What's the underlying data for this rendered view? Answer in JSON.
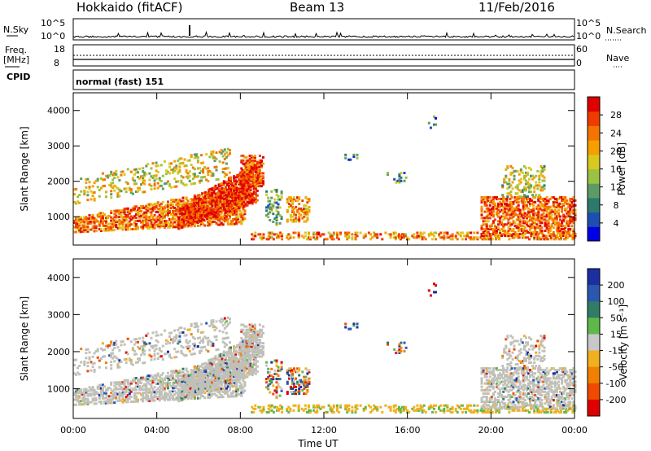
{
  "header": {
    "station": "Hokkaido (fitACF)",
    "beam": "Beam 13",
    "date": "11/Feb/2016"
  },
  "strip_panels": {
    "nsky": {
      "label": "N.Sky",
      "ticks": [
        "10^5",
        "10^0"
      ]
    },
    "nsearch": {
      "label": "N.Search",
      "ticks": [
        "10^5",
        "10^0"
      ]
    },
    "freq": {
      "label_top": "Freq.",
      "label_unit": "[MHz]",
      "ticks": [
        "18",
        "8"
      ]
    },
    "nave": {
      "label": "Nave",
      "ticks": [
        "60",
        "0"
      ]
    },
    "cpid": {
      "label": "CPID",
      "text": "normal (fast) 151"
    }
  },
  "chart_data": [
    {
      "type": "heatmap",
      "name": "power",
      "ylabel": "Slant Range [km]",
      "xlabel": "",
      "x_ticks": [
        "00:00",
        "04:00",
        "08:00",
        "12:00",
        "16:00",
        "20:00",
        "00:00"
      ],
      "xlim_hours": [
        0,
        24
      ],
      "ylim_km": [
        200,
        4500
      ],
      "y_ticks": [
        1000,
        2000,
        3000,
        4000
      ],
      "colorbar": {
        "label": "Power [dB]",
        "ticks": [
          4,
          8,
          12,
          16,
          20,
          24,
          28
        ],
        "range": [
          0,
          32
        ],
        "colors": [
          "#0000e6",
          "#1d4fb3",
          "#2d7a6d",
          "#5c9b65",
          "#9bc142",
          "#d9c820",
          "#f5a000",
          "#f57400",
          "#ee3c00",
          "#e00000"
        ]
      }
    },
    {
      "type": "heatmap",
      "name": "velocity",
      "ylabel": "Slant Range [km]",
      "xlabel": "Time UT",
      "x_ticks": [
        "00:00",
        "04:00",
        "08:00",
        "12:00",
        "16:00",
        "20:00",
        "00:00"
      ],
      "xlim_hours": [
        0,
        24
      ],
      "ylim_km": [
        200,
        4500
      ],
      "y_ticks": [
        1000,
        2000,
        3000,
        4000
      ],
      "colorbar": {
        "label": "Velocity [m s⁻¹]",
        "ticks": [
          200,
          100,
          50,
          15,
          -15,
          -50,
          -100,
          -200
        ],
        "colors": [
          "#1c2fa0",
          "#2c57b0",
          "#2f7c67",
          "#5fb84a",
          "#c8c8c8",
          "#f0b020",
          "#f08000",
          "#ef4a00",
          "#e00000"
        ]
      },
      "ground_scatter_color": "#c0c0b8"
    }
  ]
}
